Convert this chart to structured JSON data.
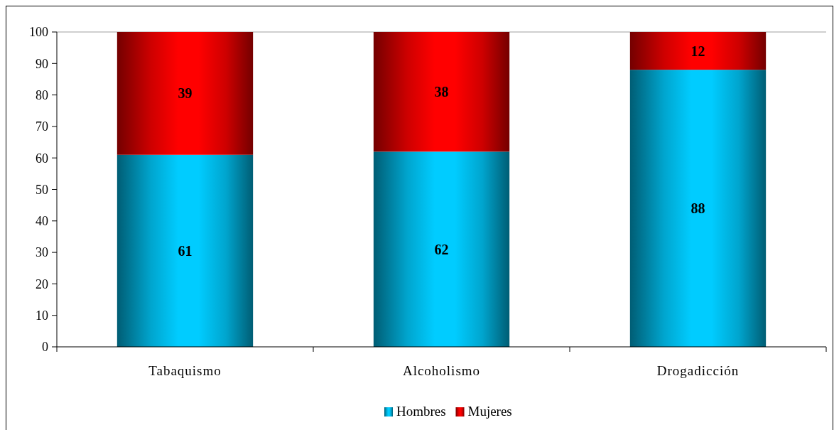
{
  "chart_data": {
    "type": "bar",
    "stacked": true,
    "categories": [
      "Tabaquismo",
      "Alcoholismo",
      "Drogadicción"
    ],
    "series": [
      {
        "name": "Hombres",
        "color": "#00ccff",
        "values": [
          61,
          62,
          88
        ]
      },
      {
        "name": "Mujeres",
        "color": "#ff0000",
        "values": [
          39,
          38,
          12
        ]
      }
    ],
    "ylim": [
      0,
      100
    ],
    "yticks": [
      0,
      10,
      20,
      30,
      40,
      50,
      60,
      70,
      80,
      90,
      100
    ],
    "data_labels": true,
    "legend": "bottom"
  }
}
